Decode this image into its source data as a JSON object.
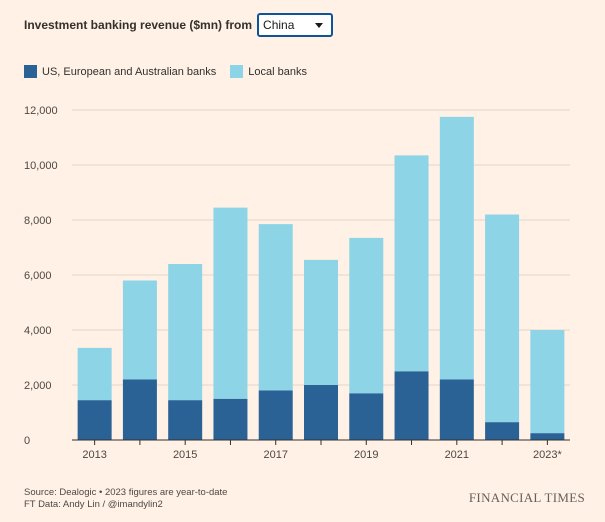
{
  "header": {
    "title": "Investment banking revenue ($mn) from",
    "select_value": "China"
  },
  "colors": {
    "foreign": "#2b6296",
    "local": "#8dd4e6",
    "grid": "#e0d5cc",
    "axis": "#33302e"
  },
  "chart_data": {
    "type": "bar",
    "stacked": true,
    "categories": [
      "2013",
      "2014",
      "2015",
      "2016",
      "2017",
      "2018",
      "2019",
      "2020",
      "2021",
      "2022",
      "2023*"
    ],
    "tick_labels": [
      "2013",
      "",
      "2015",
      "",
      "2017",
      "",
      "2019",
      "",
      "2021",
      "",
      "2023*"
    ],
    "series": [
      {
        "name": "US, European and Australian banks",
        "values": [
          1450,
          2200,
          1450,
          1500,
          1800,
          2000,
          1700,
          2500,
          2200,
          650,
          250
        ]
      },
      {
        "name": "Local banks",
        "values": [
          1900,
          3600,
          4950,
          6950,
          6050,
          4550,
          5650,
          7850,
          9550,
          7550,
          3750
        ]
      }
    ],
    "yticks": [
      0,
      2000,
      4000,
      6000,
      8000,
      10000,
      12000
    ],
    "ytick_labels": [
      "0",
      "2,000",
      "4,000",
      "6,000",
      "8,000",
      "10,000",
      "12,000"
    ],
    "ylim": [
      0,
      12000
    ],
    "xlabel": "",
    "ylabel": "",
    "legend_position": "top-left"
  },
  "footer": {
    "source": "Source: Dealogic • 2023 figures are year-to-date",
    "credit": "FT Data: Andy Lin / @imandylin2",
    "brand": "FINANCIAL TIMES"
  }
}
